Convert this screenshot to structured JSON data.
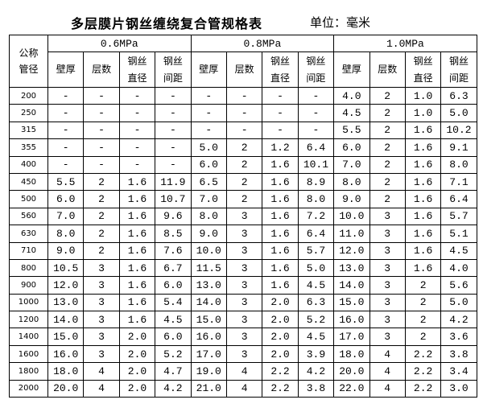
{
  "title": "多层膜片钢丝缠绕复合管规格表",
  "unit": "单位：毫米",
  "headers": {
    "dn": "公称管径",
    "groups": [
      "0.6MPa",
      "0.8MPa",
      "1.0MPa"
    ],
    "sub": [
      "壁厚",
      "层数",
      "钢丝直径",
      "钢丝间距"
    ]
  },
  "rows": [
    [
      "200",
      "-",
      "-",
      "-",
      "-",
      "-",
      "-",
      "-",
      "-",
      "4.0",
      "2",
      "1.0",
      "6.3"
    ],
    [
      "250",
      "-",
      "-",
      "-",
      "-",
      "-",
      "-",
      "-",
      "-",
      "4.5",
      "2",
      "1.0",
      "5.0"
    ],
    [
      "315",
      "-",
      "-",
      "-",
      "-",
      "-",
      "-",
      "-",
      "-",
      "5.5",
      "2",
      "1.6",
      "10.2"
    ],
    [
      "355",
      "-",
      "-",
      "-",
      "-",
      "5.0",
      "2",
      "1.2",
      "6.4",
      "6.0",
      "2",
      "1.6",
      "9.1"
    ],
    [
      "400",
      "-",
      "-",
      "-",
      "-",
      "6.0",
      "2",
      "1.6",
      "10.1",
      "7.0",
      "2",
      "1.6",
      "8.0"
    ],
    [
      "450",
      "5.5",
      "2",
      "1.6",
      "11.9",
      "6.5",
      "2",
      "1.6",
      "8.9",
      "8.0",
      "2",
      "1.6",
      "7.1"
    ],
    [
      "500",
      "6.0",
      "2",
      "1.6",
      "10.7",
      "7.0",
      "2",
      "1.6",
      "8.0",
      "9.0",
      "2",
      "1.6",
      "6.4"
    ],
    [
      "560",
      "7.0",
      "2",
      "1.6",
      "9.6",
      "8.0",
      "3",
      "1.6",
      "7.2",
      "10.0",
      "3",
      "1.6",
      "5.7"
    ],
    [
      "630",
      "8.0",
      "2",
      "1.6",
      "8.5",
      "9.0",
      "3",
      "1.6",
      "6.4",
      "11.0",
      "3",
      "1.6",
      "5.1"
    ],
    [
      "710",
      "9.0",
      "2",
      "1.6",
      "7.6",
      "10.0",
      "3",
      "1.6",
      "5.7",
      "12.0",
      "3",
      "1.6",
      "4.5"
    ],
    [
      "800",
      "10.5",
      "3",
      "1.6",
      "6.7",
      "11.5",
      "3",
      "1.6",
      "5.0",
      "13.0",
      "3",
      "1.6",
      "4.0"
    ],
    [
      "900",
      "12.0",
      "3",
      "1.6",
      "6.0",
      "13.0",
      "3",
      "1.6",
      "4.5",
      "14.0",
      "3",
      "2",
      "5.6"
    ],
    [
      "1000",
      "13.0",
      "3",
      "1.6",
      "5.4",
      "14.0",
      "3",
      "2.0",
      "6.3",
      "15.0",
      "3",
      "2",
      "5.0"
    ],
    [
      "1200",
      "14.0",
      "3",
      "1.6",
      "4.5",
      "15.0",
      "3",
      "2.0",
      "5.2",
      "16.0",
      "3",
      "2",
      "4.2"
    ],
    [
      "1400",
      "15.0",
      "3",
      "2.0",
      "6.0",
      "16.0",
      "3",
      "2.0",
      "4.5",
      "17.0",
      "3",
      "2",
      "3.6"
    ],
    [
      "1600",
      "16.0",
      "3",
      "2.0",
      "5.2",
      "17.0",
      "3",
      "2.0",
      "3.9",
      "18.0",
      "4",
      "2.2",
      "3.8"
    ],
    [
      "1800",
      "18.0",
      "4",
      "2.0",
      "4.7",
      "19.0",
      "4",
      "2.2",
      "4.2",
      "20.0",
      "4",
      "2.2",
      "3.4"
    ],
    [
      "2000",
      "20.0",
      "4",
      "2.0",
      "4.2",
      "21.0",
      "4",
      "2.2",
      "3.8",
      "22.0",
      "4",
      "2.2",
      "3.0"
    ]
  ]
}
